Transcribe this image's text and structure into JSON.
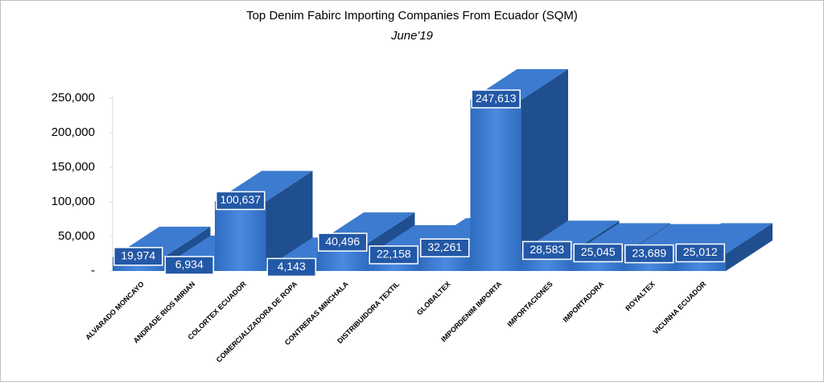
{
  "chart_data": {
    "type": "bar3d",
    "title": "Top Denim Fabirc Importing Companies From Ecuador (SQM)",
    "subtitle": "June'19",
    "categories": [
      "ALVARADO MONCAYO",
      "ANDRADE RIOS MIRIAN",
      "COLORTEX ECUADOR",
      "COMERCIALIZADORA DE ROPA",
      "CONTRERAS MINCHALA",
      "DISTRIBUIDORA TEXTIL",
      "GLOBALTEX",
      "IMPORDENIM IMPORTA",
      "IMPORTACIONES",
      "IMPORTADORA",
      "ROYALTEX",
      "VICUNHA ECUADOR"
    ],
    "values": [
      19974,
      6934,
      100637,
      4143,
      40496,
      22158,
      32261,
      247613,
      28583,
      25045,
      23689,
      25012
    ],
    "value_labels": [
      "19,974",
      "6,934",
      "100,637",
      "4,143",
      "40,496",
      "22,158",
      "32,261",
      "247,613",
      "28,583",
      "25,045",
      "23,689",
      "25,012"
    ],
    "color": "#3a7bd5",
    "ylim": [
      0,
      250000
    ],
    "yticks": [
      {
        "value": 0,
        "label": "-"
      },
      {
        "value": 50000,
        "label": "50,000"
      },
      {
        "value": 100000,
        "label": "100,000"
      },
      {
        "value": 150000,
        "label": "150,000"
      },
      {
        "value": 200000,
        "label": "200,000"
      },
      {
        "value": 250000,
        "label": "250,000"
      }
    ],
    "grid": false
  }
}
